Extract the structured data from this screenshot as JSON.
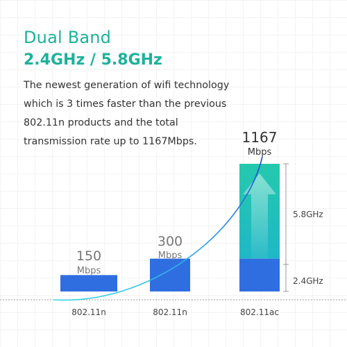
{
  "heading": "Dual Band",
  "subheading": "2.4GHz / 5.8GHz",
  "description": "The newest generation of wifi technology which is 3 times faster than the previous 802.11n products and the total transmission rate up to 1167Mbps.",
  "colors": {
    "accent": "#1db29a",
    "bar_blue": "#2f6ee0",
    "bar_teal": "#22c4b4",
    "text": "#333333",
    "muted": "#777777"
  },
  "chart_data": {
    "type": "bar",
    "unit": "Mbps",
    "categories": [
      "802.11n",
      "802.11n",
      "802.11ac"
    ],
    "values": [
      150,
      300,
      1167
    ],
    "value_labels": [
      "150",
      "300",
      "1167"
    ],
    "stacked_segments": [
      {
        "name": "2.4GHz",
        "value": 300
      },
      {
        "name": "5.8GHz",
        "value": 867
      }
    ],
    "grid": false
  }
}
